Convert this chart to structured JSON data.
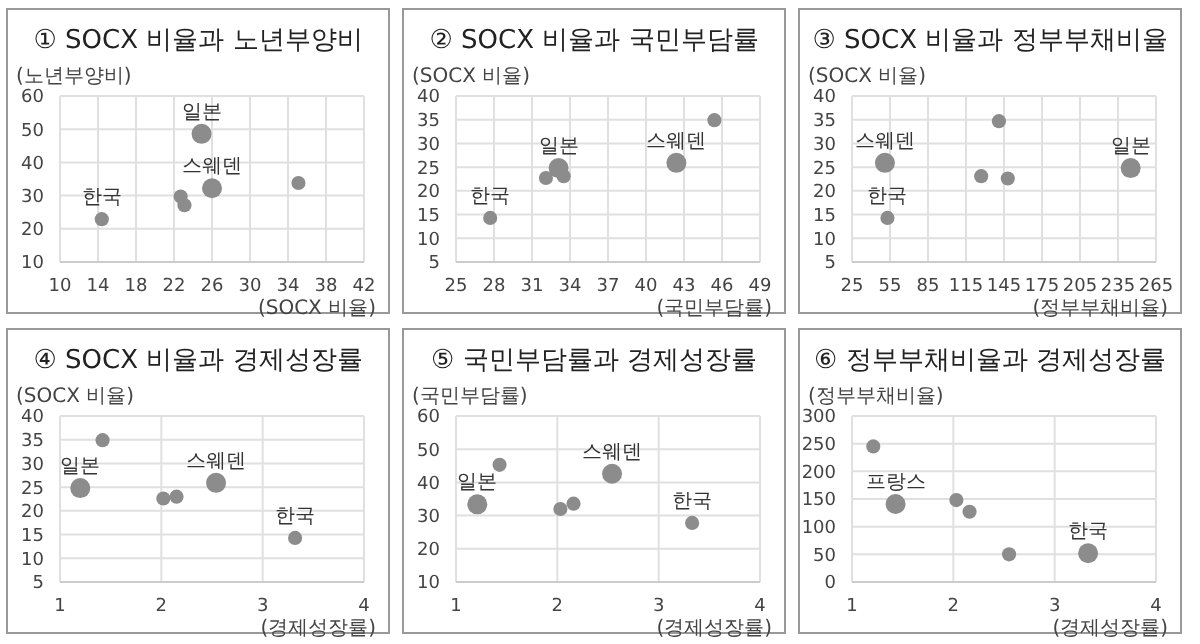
{
  "chart_data": [
    {
      "type": "bubble",
      "title": "① SOCX 비율과 노년부양비",
      "xlabel": "(SOCX 비율)",
      "ylabel": "(노년부양비)",
      "xlim": [
        10,
        42
      ],
      "xticks": [
        10,
        14,
        18,
        22,
        26,
        30,
        34,
        38,
        42
      ],
      "ylim": [
        10,
        60
      ],
      "yticks": [
        10,
        20,
        30,
        40,
        50,
        60
      ],
      "grid": true,
      "marker": "circle",
      "series": [
        {
          "color": "#8c8c8c",
          "x": [
            14.4,
            24.9,
            26.0,
            22.7,
            23.1,
            35.1
          ],
          "values": [
            22.9,
            48.6,
            32.2,
            29.7,
            27.1,
            33.8
          ],
          "sizes": [
            0.5,
            1,
            1,
            0.5,
            0.5,
            0.5
          ]
        }
      ],
      "annotations": [
        {
          "text": "한국",
          "x": 14.4,
          "y": 22.9
        },
        {
          "text": "일본",
          "x": 24.9,
          "y": 48.6
        },
        {
          "text": "스웨덴",
          "x": 26.0,
          "y": 32.2
        }
      ]
    },
    {
      "type": "bubble",
      "title": "② SOCX 비율과 국민부담률",
      "xlabel": "(국민부담률)",
      "ylabel": "(SOCX 비율)",
      "xlim": [
        25,
        49
      ],
      "xticks": [
        25,
        28,
        31,
        34,
        37,
        40,
        43,
        46,
        49
      ],
      "ylim": [
        5,
        40
      ],
      "yticks": [
        5,
        10,
        15,
        20,
        25,
        30,
        35,
        40
      ],
      "grid": true,
      "marker": "circle",
      "series": [
        {
          "color": "#8c8c8c",
          "x": [
            27.7,
            33.1,
            32.1,
            33.5,
            42.4,
            45.4
          ],
          "values": [
            14.3,
            24.8,
            22.7,
            23.1,
            25.9,
            34.9
          ],
          "sizes": [
            0.5,
            1,
            0.5,
            0.5,
            1,
            0.5
          ]
        }
      ],
      "annotations": [
        {
          "text": "한국",
          "x": 27.7,
          "y": 14.3
        },
        {
          "text": "일본",
          "x": 33.1,
          "y": 24.8
        },
        {
          "text": "스웨덴",
          "x": 42.4,
          "y": 25.9
        }
      ]
    },
    {
      "type": "bubble",
      "title": "③ SOCX 비율과 정부부채비율",
      "xlabel": "(정부부채비율)",
      "ylabel": "(SOCX 비율)",
      "xlim": [
        25,
        265
      ],
      "xticks": [
        25,
        55,
        85,
        115,
        145,
        175,
        205,
        235,
        265
      ],
      "ylim": [
        5,
        40
      ],
      "yticks": [
        5,
        10,
        15,
        20,
        25,
        30,
        35,
        40
      ],
      "grid": true,
      "marker": "circle",
      "series": [
        {
          "color": "#8c8c8c",
          "x": [
            51,
            53,
            127,
            141,
            148,
            245
          ],
          "values": [
            25.9,
            14.3,
            23.1,
            34.7,
            22.6,
            24.8
          ],
          "sizes": [
            1,
            0.5,
            0.5,
            0.5,
            0.5,
            1
          ]
        }
      ],
      "annotations": [
        {
          "text": "스웨덴",
          "x": 51,
          "y": 25.9
        },
        {
          "text": "한국",
          "x": 53,
          "y": 14.3
        },
        {
          "text": "일본",
          "x": 245,
          "y": 24.8
        }
      ]
    },
    {
      "type": "bubble",
      "title": "④ SOCX 비율과 경제성장률",
      "xlabel": "(경제성장률)",
      "ylabel": "(SOCX 비율)",
      "xlim": [
        1,
        4
      ],
      "xticks": [
        1,
        2,
        3,
        4
      ],
      "ylim": [
        5,
        40
      ],
      "yticks": [
        5,
        10,
        15,
        20,
        25,
        30,
        35,
        40
      ],
      "grid": true,
      "marker": "circle",
      "series": [
        {
          "color": "#8c8c8c",
          "x": [
            1.2,
            1.42,
            2.02,
            2.15,
            2.54,
            3.32
          ],
          "values": [
            24.8,
            34.9,
            22.6,
            23.0,
            25.9,
            14.3
          ],
          "sizes": [
            1,
            0.5,
            0.5,
            0.5,
            1,
            0.5
          ]
        }
      ],
      "annotations": [
        {
          "text": "일본",
          "x": 1.2,
          "y": 24.8
        },
        {
          "text": "스웨덴",
          "x": 2.54,
          "y": 25.9
        },
        {
          "text": "한국",
          "x": 3.32,
          "y": 14.3
        }
      ]
    },
    {
      "type": "bubble",
      "title": "⑤ 국민부담률과 경제성장률",
      "xlabel": "(경제성장률)",
      "ylabel": "(국민부담률)",
      "xlim": [
        1,
        4
      ],
      "xticks": [
        1,
        2,
        3,
        4
      ],
      "ylim": [
        10,
        60
      ],
      "yticks": [
        10,
        20,
        30,
        40,
        50,
        60
      ],
      "grid": true,
      "marker": "circle",
      "series": [
        {
          "color": "#8c8c8c",
          "x": [
            1.21,
            1.43,
            2.03,
            2.16,
            2.54,
            3.33
          ],
          "values": [
            33.4,
            45.3,
            32.0,
            33.6,
            42.6,
            27.8
          ],
          "sizes": [
            1,
            0.5,
            0.5,
            0.5,
            1,
            0.5
          ]
        }
      ],
      "annotations": [
        {
          "text": "일본",
          "x": 1.21,
          "y": 33.4
        },
        {
          "text": "스웨덴",
          "x": 2.54,
          "y": 42.6
        },
        {
          "text": "한국",
          "x": 3.33,
          "y": 27.8
        }
      ]
    },
    {
      "type": "bubble",
      "title": "⑥ 정부부채비율과 경제성장률",
      "xlabel": "(경제성장률)",
      "ylabel": "(정부부채비율)",
      "xlim": [
        1,
        4
      ],
      "xticks": [
        1,
        2,
        3,
        4
      ],
      "ylim": [
        0,
        300
      ],
      "yticks": [
        0,
        50,
        100,
        150,
        200,
        250,
        300
      ],
      "grid": true,
      "marker": "circle",
      "series": [
        {
          "color": "#8c8c8c",
          "x": [
            1.21,
            1.43,
            2.03,
            2.16,
            2.55,
            3.33
          ],
          "values": [
            245,
            141,
            148,
            127,
            50,
            52
          ],
          "sizes": [
            0.5,
            1,
            0.5,
            0.5,
            0.5,
            1
          ]
        }
      ],
      "annotations": [
        {
          "text": "프랑스",
          "x": 1.43,
          "y": 141
        },
        {
          "text": "한국",
          "x": 3.33,
          "y": 52
        }
      ]
    }
  ]
}
